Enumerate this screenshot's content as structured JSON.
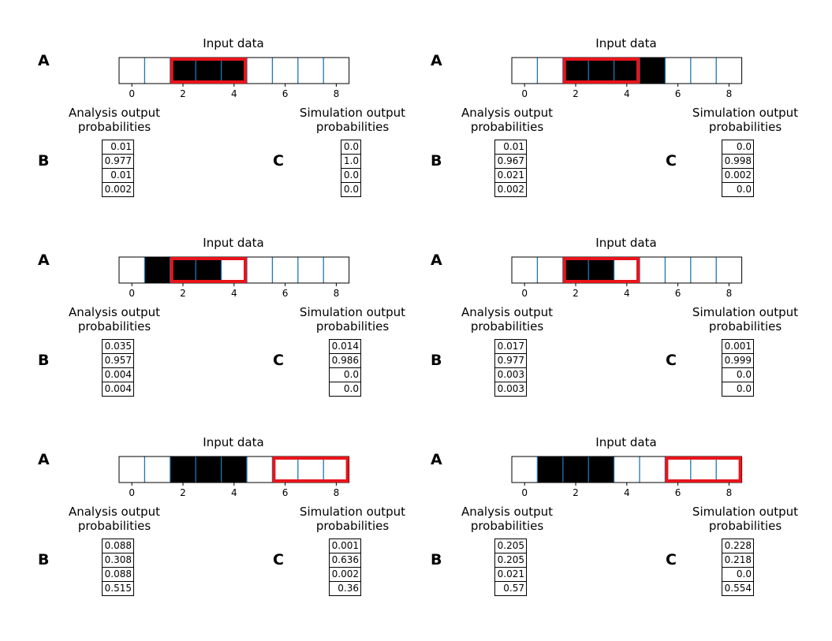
{
  "chart_data": [
    {
      "type": "table",
      "title": "Input data",
      "label_a": "A",
      "label_b": "B",
      "label_c": "C",
      "xticks": [
        0,
        2,
        4,
        6,
        8
      ],
      "cells": [
        0,
        0,
        1,
        1,
        1,
        0,
        0,
        0,
        0
      ],
      "highlight": [
        2,
        4
      ],
      "analysis_title": [
        "Analysis output",
        "probabilities"
      ],
      "analysis": [
        "0.01",
        "0.977",
        "0.01",
        "0.002"
      ],
      "simulation_title": [
        "Simulation output",
        "probabilities"
      ],
      "simulation": [
        "0.0",
        "1.0",
        "0.0",
        "0.0"
      ]
    },
    {
      "type": "table",
      "title": "Input data",
      "label_a": "A",
      "label_b": "B",
      "label_c": "C",
      "xticks": [
        0,
        2,
        4,
        6,
        8
      ],
      "cells": [
        0,
        0,
        1,
        1,
        1,
        1,
        0,
        0,
        0
      ],
      "highlight": [
        2,
        4
      ],
      "analysis_title": [
        "Analysis output",
        "probabilities"
      ],
      "analysis": [
        "0.01",
        "0.967",
        "0.021",
        "0.002"
      ],
      "simulation_title": [
        "Simulation output",
        "probabilities"
      ],
      "simulation": [
        "0.0",
        "0.998",
        "0.002",
        "0.0"
      ]
    },
    {
      "type": "table",
      "title": "Input data",
      "label_a": "A",
      "label_b": "B",
      "label_c": "C",
      "xticks": [
        0,
        2,
        4,
        6,
        8
      ],
      "cells": [
        0,
        1,
        1,
        1,
        0,
        0,
        0,
        0,
        0
      ],
      "highlight": [
        2,
        4
      ],
      "analysis_title": [
        "Analysis output",
        "probabilities"
      ],
      "analysis": [
        "0.035",
        "0.957",
        "0.004",
        "0.004"
      ],
      "simulation_title": [
        "Simulation output",
        "probabilities"
      ],
      "simulation": [
        "0.014",
        "0.986",
        "0.0",
        "0.0"
      ]
    },
    {
      "type": "table",
      "title": "Input data",
      "label_a": "A",
      "label_b": "B",
      "label_c": "C",
      "xticks": [
        0,
        2,
        4,
        6,
        8
      ],
      "cells": [
        0,
        0,
        1,
        1,
        0,
        0,
        0,
        0,
        0
      ],
      "highlight": [
        2,
        4
      ],
      "analysis_title": [
        "Analysis output",
        "probabilities"
      ],
      "analysis": [
        "0.017",
        "0.977",
        "0.003",
        "0.003"
      ],
      "simulation_title": [
        "Simulation output",
        "probabilities"
      ],
      "simulation": [
        "0.001",
        "0.999",
        "0.0",
        "0.0"
      ]
    },
    {
      "type": "table",
      "title": "Input data",
      "label_a": "A",
      "label_b": "B",
      "label_c": "C",
      "xticks": [
        0,
        2,
        4,
        6,
        8
      ],
      "cells": [
        0,
        0,
        1,
        1,
        1,
        0,
        0,
        0,
        0
      ],
      "highlight": [
        6,
        8
      ],
      "analysis_title": [
        "Analysis output",
        "probabilities"
      ],
      "analysis": [
        "0.088",
        "0.308",
        "0.088",
        "0.515"
      ],
      "simulation_title": [
        "Simulation output",
        "probabilities"
      ],
      "simulation": [
        "0.001",
        "0.636",
        "0.002",
        "0.36"
      ]
    },
    {
      "type": "table",
      "title": "Input data",
      "label_a": "A",
      "label_b": "B",
      "label_c": "C",
      "xticks": [
        0,
        2,
        4,
        6,
        8
      ],
      "cells": [
        0,
        1,
        1,
        1,
        0,
        0,
        0,
        0,
        0
      ],
      "highlight": [
        6,
        8
      ],
      "analysis_title": [
        "Analysis output",
        "probabilities"
      ],
      "analysis": [
        "0.205",
        "0.205",
        "0.021",
        "0.57"
      ],
      "simulation_title": [
        "Simulation output",
        "probabilities"
      ],
      "simulation": [
        "0.228",
        "0.218",
        "0.0",
        "0.554"
      ]
    }
  ],
  "colors": {
    "cell_on": "#000000",
    "cell_off": "#ffffff",
    "divider": "#1f77b4",
    "highlight": "#e8141b",
    "frame": "#000000"
  }
}
